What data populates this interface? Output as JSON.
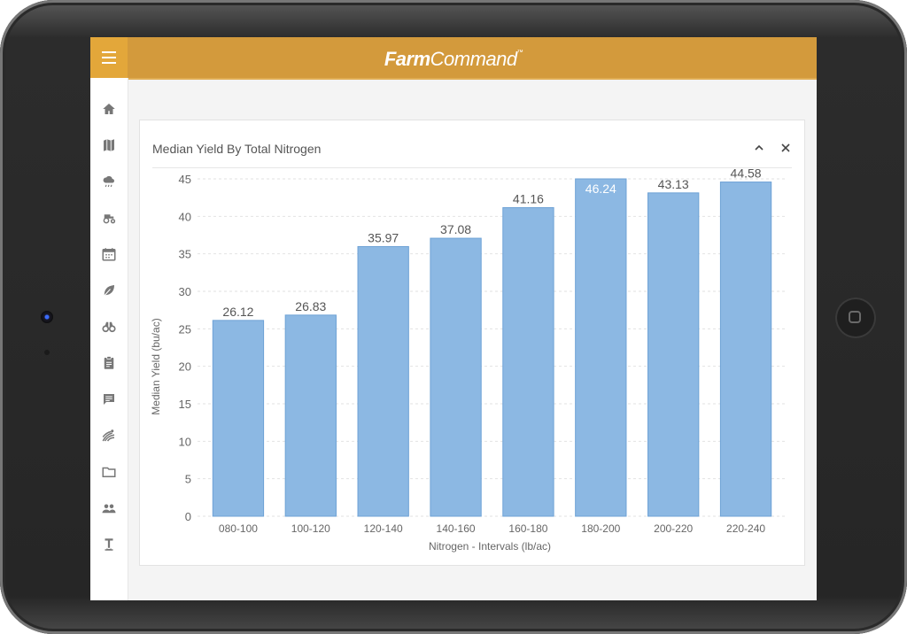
{
  "app": {
    "brand_part1": "Farm",
    "brand_part2": "Command",
    "brand_tm": "™"
  },
  "sidebar": {
    "items": [
      {
        "icon": "home-icon"
      },
      {
        "icon": "map-icon"
      },
      {
        "icon": "weather-icon"
      },
      {
        "icon": "tractor-icon"
      },
      {
        "icon": "calendar-icon"
      },
      {
        "icon": "leaf-icon"
      },
      {
        "icon": "binoculars-icon"
      },
      {
        "icon": "clipboard-icon"
      },
      {
        "icon": "chat-icon"
      },
      {
        "icon": "field-rows-icon"
      },
      {
        "icon": "folder-icon"
      },
      {
        "icon": "people-icon"
      },
      {
        "icon": "probe-icon"
      }
    ]
  },
  "card": {
    "title": "Median Yield By Total Nitrogen"
  },
  "chart_data": {
    "type": "bar",
    "title": "Median Yield By Total Nitrogen",
    "xlabel": "Nitrogen - Intervals (lb/ac)",
    "ylabel": "Median Yield (bu/ac)",
    "categories": [
      "080-100",
      "100-120",
      "120-140",
      "140-160",
      "160-180",
      "180-200",
      "200-220",
      "220-240"
    ],
    "values": [
      26.12,
      26.83,
      35.97,
      37.08,
      41.16,
      46.24,
      43.13,
      44.58
    ],
    "value_labels": [
      "26.12",
      "26.83",
      "35.97",
      "37.08",
      "41.16",
      "46.24",
      "43.13",
      "44.58"
    ],
    "ylim": [
      0,
      45
    ],
    "yticks": [
      "0",
      "5",
      "10",
      "15",
      "20",
      "25",
      "30",
      "35",
      "40",
      "45"
    ],
    "bar_color": "#8cb8e3",
    "bar_border": "#6ea2d6",
    "grid": "dashed horizontal"
  }
}
